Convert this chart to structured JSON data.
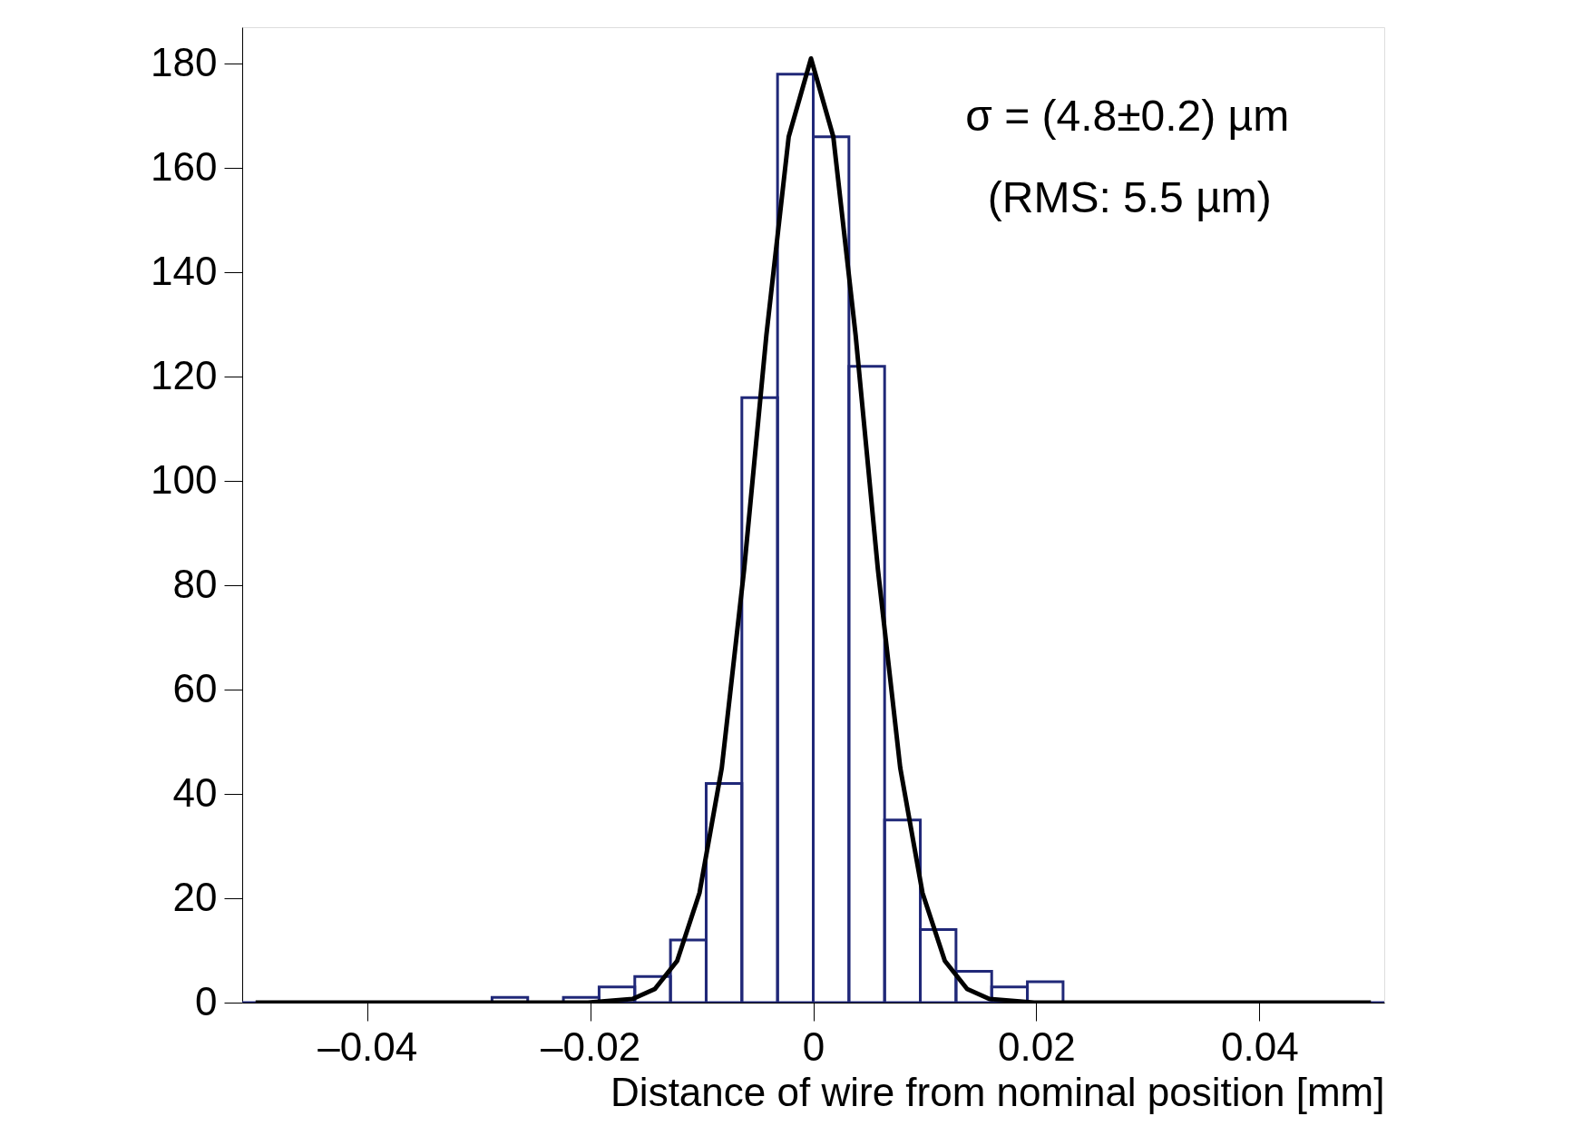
{
  "chart_data": {
    "type": "histogram",
    "xlabel": "Distance of wire from nominal position [mm]",
    "bins": [
      -0.0512,
      -0.048,
      -0.0448,
      -0.0416,
      -0.0384,
      -0.0352,
      -0.032,
      -0.0288,
      -0.0256,
      -0.0224,
      -0.0192,
      -0.016,
      -0.0128,
      -0.0096,
      -0.0064,
      -0.0032,
      0,
      0.0032,
      0.0064,
      0.0096,
      0.0128,
      0.016,
      0.0192,
      0.0224,
      0.0256,
      0.0288,
      0.032,
      0.0352,
      0.0384,
      0.0416,
      0.0448,
      0.048,
      0.0512
    ],
    "values": [
      0,
      0,
      0,
      0,
      0,
      0,
      0,
      1,
      0,
      1,
      3,
      5,
      12,
      42,
      116,
      178,
      166,
      122,
      35,
      14,
      6,
      3,
      4,
      0,
      0,
      0,
      0,
      0,
      0,
      0,
      0,
      0
    ],
    "color": "#202878",
    "series": [
      {
        "type": "line",
        "color": "#000000",
        "x": [
          -0.05,
          -0.0202,
          -0.0162,
          -0.0142,
          -0.0122,
          -0.0102,
          -0.0082,
          -0.0062,
          -0.0042,
          -0.0022,
          -0.0002,
          0.0018,
          0.0038,
          0.0058,
          0.0078,
          0.0098,
          0.0118,
          0.0138,
          0.0158,
          0.0198,
          0.05
        ],
        "values": [
          0,
          0,
          0.7,
          2.6,
          8,
          21,
          45,
          83,
          128,
          166,
          181,
          166,
          128,
          83,
          45,
          21,
          8,
          2.6,
          0.7,
          0,
          0
        ]
      }
    ],
    "xlim": [
      -0.0512,
      0.0512
    ],
    "ylim": [
      0,
      187
    ],
    "xticks": [
      {
        "value": -0.04,
        "label": "–0.04"
      },
      {
        "value": -0.02,
        "label": "–0.02"
      },
      0,
      {
        "value": 0.02,
        "label": "0.02"
      },
      {
        "value": 0.04,
        "label": "0.04"
      }
    ],
    "yticks": [
      0,
      20,
      40,
      60,
      80,
      100,
      120,
      140,
      160,
      180
    ],
    "annotations": [
      "σ = (4.8±0.2) µm",
      "(RMS: 5.5 µm)"
    ],
    "grid": false,
    "line_style": "solid",
    "marker": "none"
  }
}
